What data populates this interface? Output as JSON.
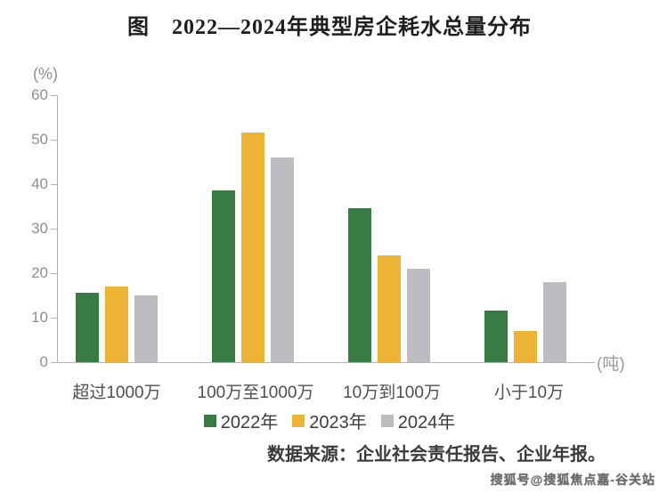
{
  "page": {
    "title": "图　2022—2024年典型房企耗水总量分布",
    "source_note": "数据来源：企业社会责任报告、企业年报。",
    "watermark": "搜狐号@搜狐焦点嘉-谷关站"
  },
  "chart_data": {
    "type": "bar",
    "title": "图　2022—2024年典型房企耗水总量分布",
    "y_axis_unit": "(%)",
    "x_axis_unit": "(吨)",
    "ylim": [
      0,
      60
    ],
    "yticks": [
      0,
      10,
      20,
      30,
      40,
      50,
      60
    ],
    "grid": false,
    "legend_position": "bottom",
    "categories": [
      "超过1000万",
      "100万至1000万",
      "10万到100万",
      "小于10万"
    ],
    "series": [
      {
        "name": "2022年",
        "color": "#387C44",
        "values": [
          15.5,
          38.5,
          34.5,
          11.5
        ]
      },
      {
        "name": "2023年",
        "color": "#EDB334",
        "values": [
          17,
          51.5,
          24,
          7
        ]
      },
      {
        "name": "2024年",
        "color": "#BBBDC0",
        "values": [
          15,
          46,
          21,
          18
        ]
      }
    ]
  }
}
